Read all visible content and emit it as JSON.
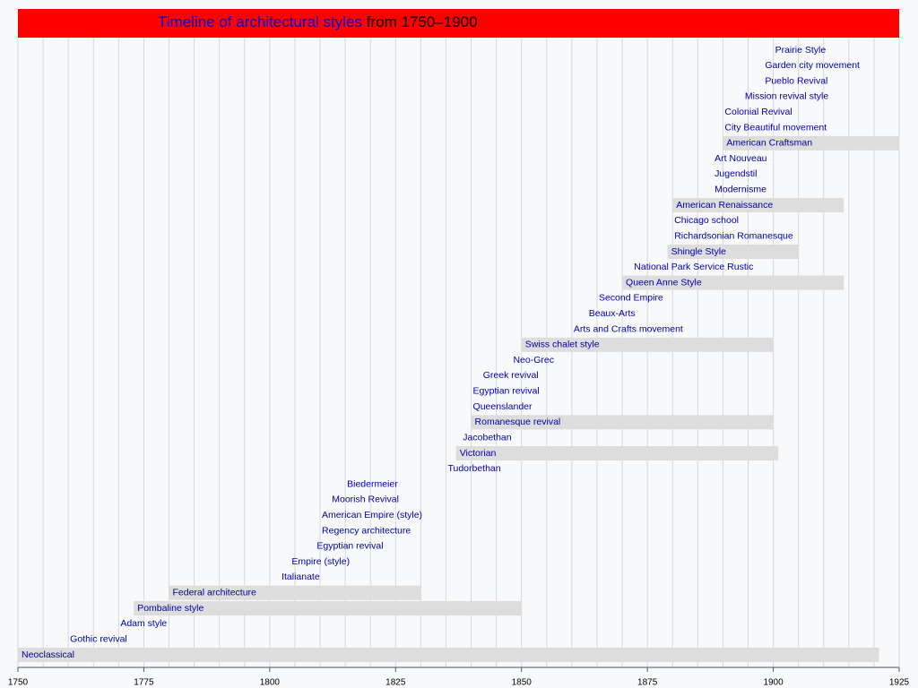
{
  "chart_data": {
    "type": "timeline",
    "title": "Timeline of architectural styles",
    "subtitle": "from 1750–1900",
    "xlim": [
      1750,
      1925
    ],
    "xticks": [
      1750,
      1775,
      1800,
      1825,
      1850,
      1875,
      1900,
      1925
    ],
    "minor_xticks": [
      1750,
      1755,
      1760,
      1765,
      1770,
      1775,
      1780,
      1785,
      1790,
      1795,
      1800,
      1805,
      1810,
      1815,
      1820,
      1825,
      1830,
      1835,
      1840,
      1845,
      1850,
      1855,
      1860,
      1865,
      1870,
      1875,
      1880,
      1885,
      1890,
      1895,
      1900,
      1905,
      1910,
      1915,
      1920,
      1925
    ],
    "grid": true,
    "bar_color": "#dddddd",
    "label_color": "#0000aa",
    "styles": [
      {
        "name": "Neoclassical",
        "start": 1750,
        "end": 1921
      },
      {
        "name": "Gothic revival",
        "start": 1760
      },
      {
        "name": "Adam style",
        "start": 1770
      },
      {
        "name": "Pombaline style",
        "start": 1773,
        "end": 1850
      },
      {
        "name": "Federal architecture",
        "start": 1780,
        "end": 1830
      },
      {
        "name": "Italianate",
        "start": 1802
      },
      {
        "name": "Empire (style)",
        "start": 1804
      },
      {
        "name": "Egyptian revival",
        "start": 1809
      },
      {
        "name": "Regency architecture",
        "start": 1810
      },
      {
        "name": "American Empire (style)",
        "start": 1810
      },
      {
        "name": "Moorish Revival",
        "start": 1812
      },
      {
        "name": "Biedermeier",
        "start": 1815
      },
      {
        "name": "Tudorbethan",
        "start": 1835
      },
      {
        "name": "Victorian",
        "start": 1837,
        "end": 1901
      },
      {
        "name": "Jacobethan",
        "start": 1838
      },
      {
        "name": "Romanesque revival",
        "start": 1840,
        "end": 1900
      },
      {
        "name": "Queenslander",
        "start": 1840
      },
      {
        "name": "Egyptian revival",
        "start": 1840
      },
      {
        "name": "Greek revival",
        "start": 1842
      },
      {
        "name": "Neo-Grec",
        "start": 1848
      },
      {
        "name": "Swiss chalet style",
        "start": 1850,
        "end": 1900
      },
      {
        "name": "Arts and Crafts movement",
        "start": 1860
      },
      {
        "name": "Beaux-Arts",
        "start": 1863
      },
      {
        "name": "Second Empire",
        "start": 1865
      },
      {
        "name": "Queen Anne Style",
        "start": 1870,
        "end": 1914
      },
      {
        "name": "National Park Service Rustic",
        "start": 1872
      },
      {
        "name": "Shingle Style",
        "start": 1879,
        "end": 1905
      },
      {
        "name": "Richardsonian Romanesque",
        "start": 1880
      },
      {
        "name": "Chicago school",
        "start": 1880
      },
      {
        "name": "American Renaissance",
        "start": 1880,
        "end": 1914
      },
      {
        "name": "Modernisme",
        "start": 1888
      },
      {
        "name": "Jugendstil",
        "start": 1888
      },
      {
        "name": "Art Nouveau",
        "start": 1888
      },
      {
        "name": "American Craftsman",
        "start": 1890,
        "end": 1925
      },
      {
        "name": "City Beautiful movement",
        "start": 1890
      },
      {
        "name": "Colonial Revival",
        "start": 1890
      },
      {
        "name": "Mission revival style",
        "start": 1894
      },
      {
        "name": "Pueblo Revival",
        "start": 1898
      },
      {
        "name": "Garden city movement",
        "start": 1898
      },
      {
        "name": "Prairie Style",
        "start": 1900
      }
    ]
  }
}
